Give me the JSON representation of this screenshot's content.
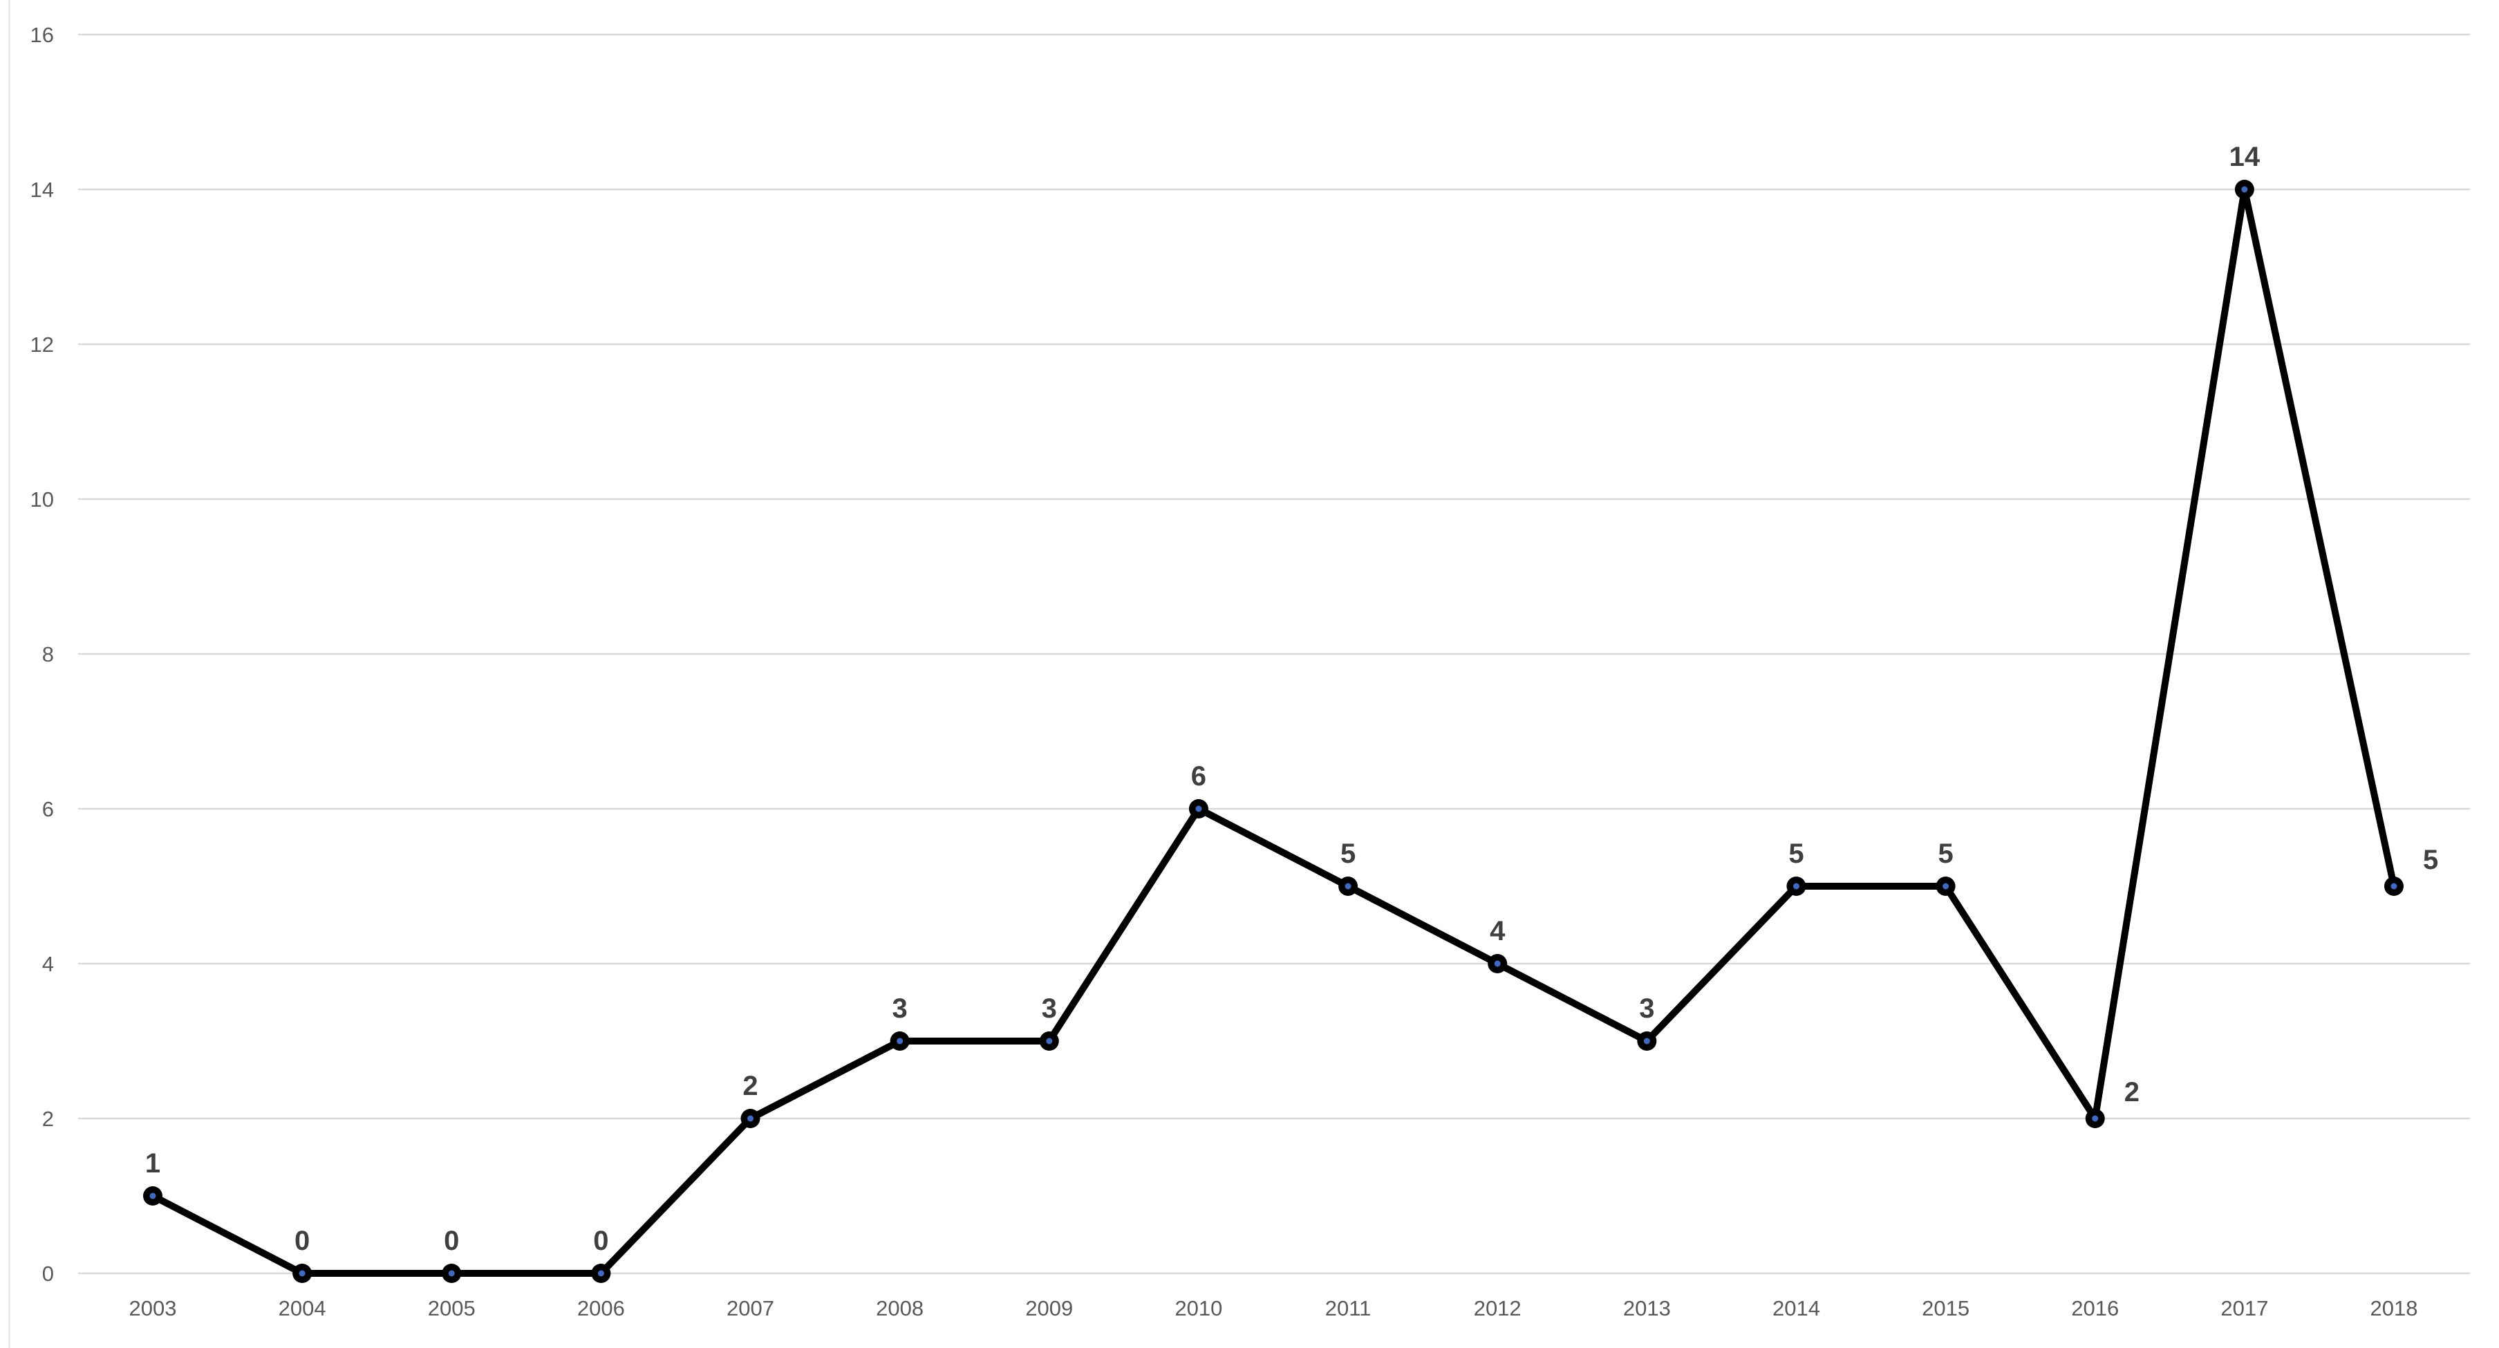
{
  "chart_data": {
    "type": "line",
    "title": "",
    "xlabel": "",
    "ylabel": "",
    "categories": [
      "2003",
      "2004",
      "2005",
      "2006",
      "2007",
      "2008",
      "2009",
      "2010",
      "2011",
      "2012",
      "2013",
      "2014",
      "2015",
      "2016",
      "2017",
      "2018"
    ],
    "series": [
      {
        "name": "values",
        "values": [
          1,
          0,
          0,
          0,
          2,
          3,
          3,
          6,
          5,
          4,
          3,
          5,
          5,
          2,
          14,
          5
        ]
      }
    ],
    "data_labels": [
      "1",
      "0",
      "0",
      "0",
      "2",
      "3",
      "3",
      "6",
      "5",
      "4",
      "3",
      "5",
      "5",
      "2",
      "14",
      "5"
    ],
    "label_positions": [
      "above",
      "above",
      "above",
      "above",
      "above",
      "above",
      "above",
      "above",
      "above",
      "above",
      "above",
      "above",
      "above",
      "right",
      "above",
      "right"
    ],
    "ylim": [
      0,
      16
    ],
    "ytick_step": 2,
    "ytick_labels": [
      "0",
      "2",
      "4",
      "6",
      "8",
      "10",
      "12",
      "14",
      "16"
    ],
    "grid": true,
    "legend": "none",
    "colors": {
      "line": "#000000",
      "marker_fill": "#000000",
      "marker_center": "#3f6ac4",
      "gridline": "#d9d9d9",
      "axis_text": "#595959",
      "data_label": "#3f3f3f",
      "background": "#ffffff",
      "left_edge_line": "#e9e9e9"
    }
  }
}
